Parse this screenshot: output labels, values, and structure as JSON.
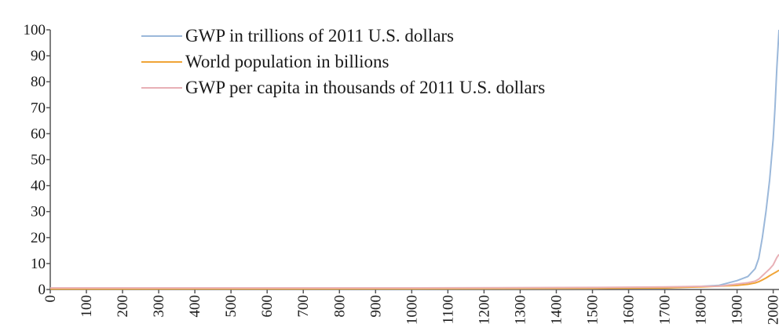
{
  "chart_data": {
    "type": "line",
    "title": "",
    "xlabel": "",
    "ylabel": "",
    "xlim": [
      0,
      2016
    ],
    "ylim": [
      0,
      100
    ],
    "y_ticks": [
      0,
      10,
      20,
      30,
      40,
      50,
      60,
      70,
      80,
      90,
      100
    ],
    "x_ticks": [
      0,
      100,
      200,
      300,
      400,
      500,
      600,
      700,
      800,
      900,
      1000,
      1100,
      1200,
      1300,
      1400,
      1500,
      1600,
      1700,
      1800,
      1900,
      2000
    ],
    "grid": false,
    "legend_position": "top-center",
    "series": [
      {
        "name": "GWP in trillions of 2011 U.S. dollars",
        "color": "#9bb8da",
        "x": [
          0,
          1000,
          1500,
          1600,
          1700,
          1800,
          1850,
          1900,
          1930,
          1950,
          1960,
          1970,
          1980,
          1990,
          2000,
          2005,
          2010,
          2016
        ],
        "y": [
          0.2,
          0.25,
          0.4,
          0.5,
          0.6,
          1.2,
          1.6,
          3.4,
          5,
          8,
          12,
          20,
          30,
          42,
          58,
          70,
          85,
          100
        ]
      },
      {
        "name": "World population in billions",
        "color": "#f0a437",
        "x": [
          0,
          1000,
          1500,
          1600,
          1700,
          1800,
          1850,
          1900,
          1930,
          1950,
          1960,
          1970,
          1980,
          1990,
          2000,
          2010,
          2016
        ],
        "y": [
          0.2,
          0.3,
          0.45,
          0.55,
          0.6,
          1.0,
          1.3,
          1.6,
          2.0,
          2.5,
          3.0,
          3.7,
          4.4,
          5.3,
          6.1,
          6.9,
          7.4
        ]
      },
      {
        "name": "GWP per capita in thousands of 2011 U.S. dollars",
        "color": "#e8b0b6",
        "x": [
          0,
          1000,
          1500,
          1700,
          1800,
          1850,
          1900,
          1930,
          1950,
          1960,
          1970,
          1980,
          1990,
          2000,
          2010,
          2016
        ],
        "y": [
          0.6,
          0.6,
          0.8,
          1.0,
          1.2,
          1.3,
          2.1,
          2.6,
          3.2,
          4.0,
          5.3,
          6.6,
          7.9,
          9.5,
          12.3,
          13.5
        ]
      }
    ]
  }
}
